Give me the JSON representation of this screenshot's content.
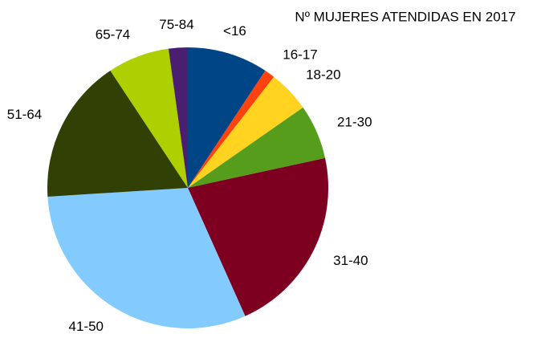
{
  "chart_data": {
    "type": "pie",
    "title": "Nº MUJERES ATENDIDAS EN 2017",
    "categories": [
      "<16",
      "16-17",
      "18-20",
      "21-30",
      "31-40",
      "41-50",
      "51-64",
      "65-74",
      "75-84"
    ],
    "values": [
      9.3,
      1.2,
      4.8,
      6.3,
      21.7,
      30.7,
      16.7,
      7.1,
      2.2
    ],
    "colors": [
      "#004586",
      "#ff420e",
      "#ffd320",
      "#579d1c",
      "#7e0021",
      "#83caff",
      "#314004",
      "#aecf00",
      "#4b1f6f"
    ]
  }
}
